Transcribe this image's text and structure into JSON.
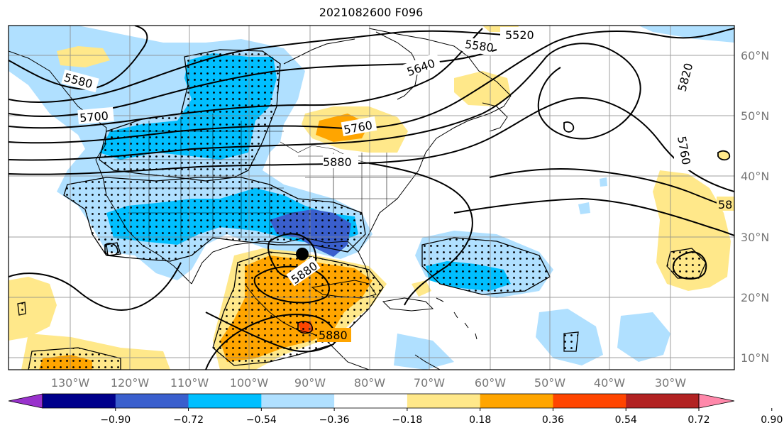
{
  "title": "2021082600 F096",
  "lat_labels": [
    "60°N",
    "50°N",
    "40°N",
    "30°N",
    "20°N",
    "10°N"
  ],
  "lon_labels": [
    "130°W",
    "120°W",
    "110°W",
    "100°W",
    "90°W",
    "80°W",
    "70°W",
    "60°W",
    "50°W",
    "40°W",
    "30°W"
  ],
  "contour_labels": [
    "5520",
    "5580",
    "5640",
    "5580",
    "5700",
    "5760",
    "5820",
    "5760",
    "5880",
    "5880",
    "5880",
    "58"
  ],
  "colorbar": {
    "ticks": [
      "−0.90",
      "−0.72",
      "−0.54",
      "−0.36",
      "−0.18",
      "0.18",
      "0.36",
      "0.54",
      "0.72",
      "0.90"
    ],
    "colors": [
      "#9932cc",
      "#00008b",
      "#3a5fcd",
      "#00bfff",
      "#b0e0ff",
      "#ffffff",
      "#ffe88a",
      "#ffa500",
      "#ff4500",
      "#b22222",
      "#ff88aa"
    ]
  },
  "map": {
    "extent_lon": [
      -135,
      -25
    ],
    "extent_lat": [
      8,
      65
    ],
    "grid_lon": [
      -130,
      -120,
      -110,
      -100,
      -90,
      -80,
      -70,
      -60,
      -50,
      -40,
      -30
    ],
    "grid_lat": [
      10,
      20,
      30,
      40,
      50,
      60
    ],
    "marker_dot": {
      "lon": -92,
      "lat": 27
    }
  }
}
